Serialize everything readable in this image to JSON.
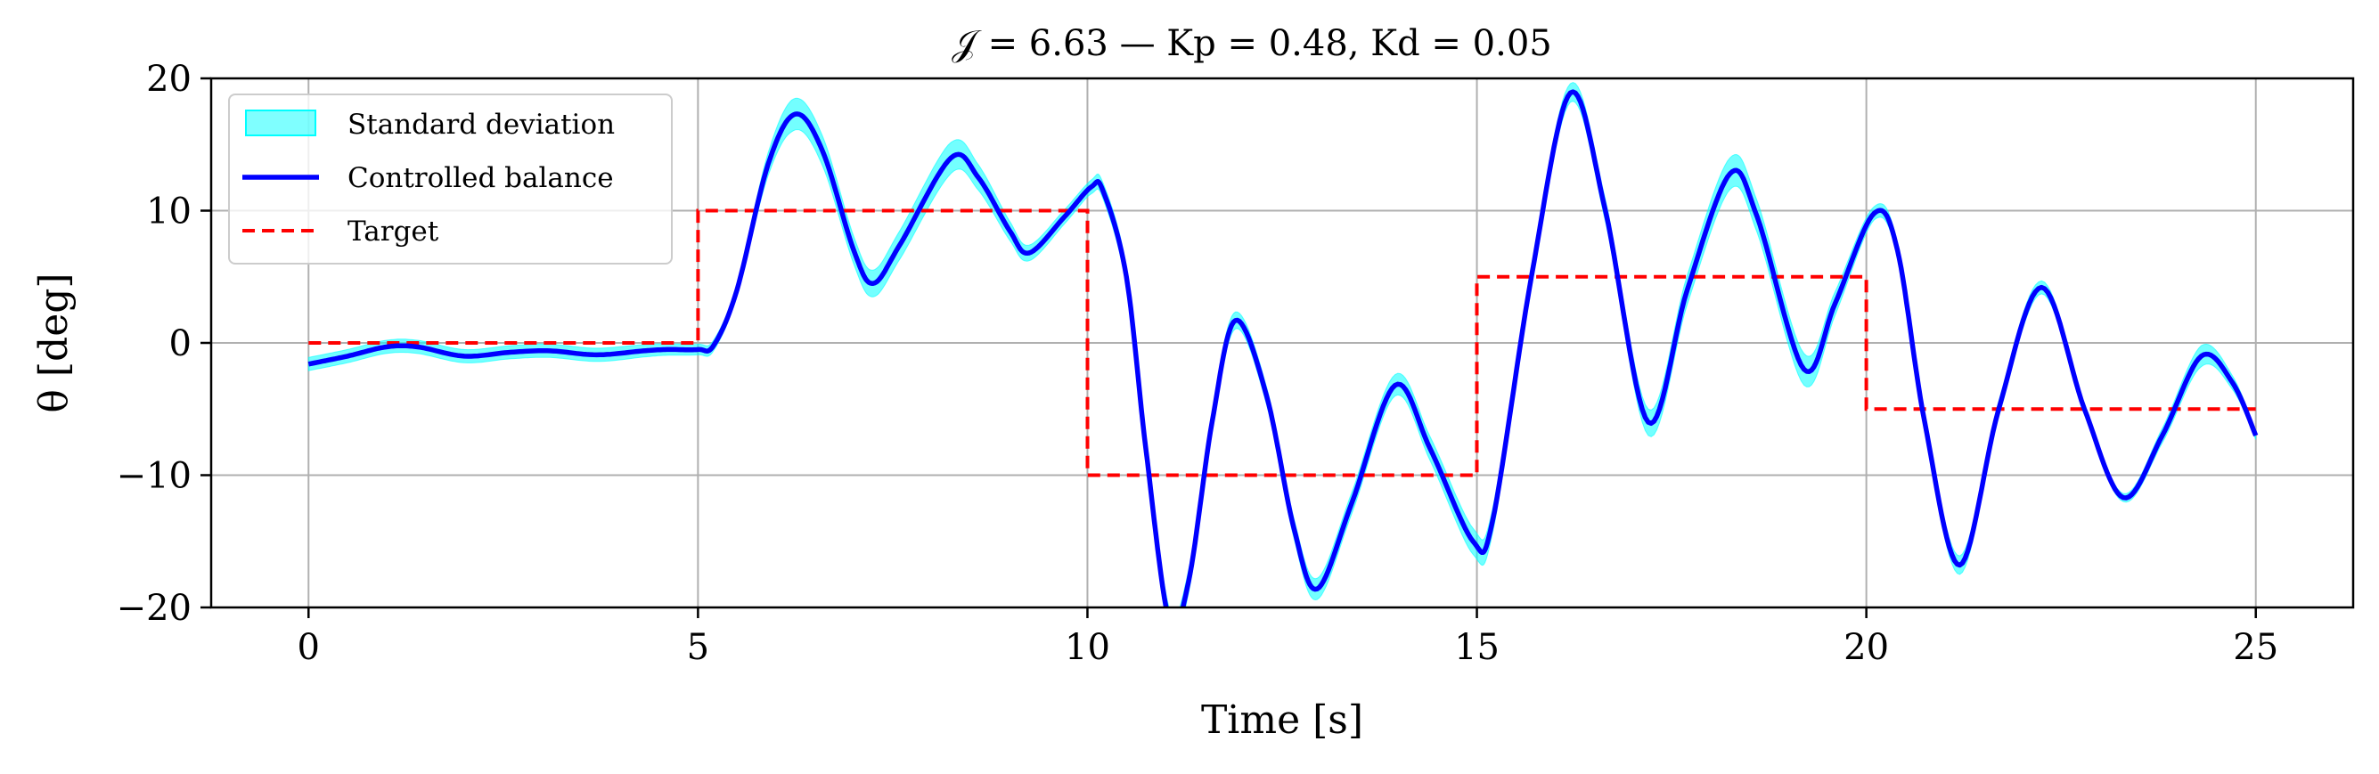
{
  "chart_data": {
    "type": "line",
    "title": "𝒥 = 6.63 — Kp = 0.48, Kd = 0.05",
    "xlabel": "Time [s]",
    "ylabel": "θ [deg]",
    "xlim": [
      -1.25,
      26.25
    ],
    "ylim": [
      -20,
      20
    ],
    "xticks": [
      0,
      5,
      10,
      15,
      20,
      25
    ],
    "yticks": [
      20,
      10,
      0,
      -10,
      -20
    ],
    "xtick_labels": [
      "0",
      "5",
      "10",
      "15",
      "20",
      "25"
    ],
    "ytick_labels": [
      "20",
      "10",
      "0",
      "−10",
      "−20"
    ],
    "grid": true,
    "legend_position": "top-left",
    "series": [
      {
        "name": "Standard deviation",
        "kind": "band",
        "color": "#00ffff",
        "halfwidth": [
          [
            0,
            0.5
          ],
          [
            2,
            0.5
          ],
          [
            4,
            0.5
          ],
          [
            4.9,
            0.4
          ],
          [
            5.5,
            0.4
          ],
          [
            6.2,
            1.2
          ],
          [
            7.2,
            1.0
          ],
          [
            8.2,
            1.2
          ],
          [
            9.2,
            0.6
          ],
          [
            10,
            0.5
          ],
          [
            11,
            1.0
          ],
          [
            12,
            0.6
          ],
          [
            12.9,
            0.8
          ],
          [
            13.9,
            0.8
          ],
          [
            14.9,
            1.0
          ],
          [
            16.2,
            0.7
          ],
          [
            17.2,
            1.0
          ],
          [
            18.2,
            1.2
          ],
          [
            19.2,
            1.2
          ],
          [
            20.1,
            0.5
          ],
          [
            21.2,
            0.7
          ],
          [
            22.2,
            0.5
          ],
          [
            23.3,
            0.3
          ],
          [
            24.3,
            0.8
          ],
          [
            25,
            0.3
          ]
        ]
      },
      {
        "name": "Controlled balance",
        "kind": "line",
        "color": "#0000ff",
        "points": [
          [
            0,
            -1.6
          ],
          [
            0.5,
            -1.0
          ],
          [
            1.0,
            -0.3
          ],
          [
            1.4,
            -0.3
          ],
          [
            2.0,
            -1.0
          ],
          [
            2.6,
            -0.7
          ],
          [
            3.1,
            -0.6
          ],
          [
            3.7,
            -0.9
          ],
          [
            4.3,
            -0.6
          ],
          [
            4.6,
            -0.5
          ],
          [
            5.0,
            -0.5
          ],
          [
            5.2,
            -0.2
          ],
          [
            5.5,
            4.0
          ],
          [
            5.9,
            13.5
          ],
          [
            6.25,
            17.3
          ],
          [
            6.6,
            14.5
          ],
          [
            7.0,
            7.0
          ],
          [
            7.25,
            4.5
          ],
          [
            7.6,
            7.5
          ],
          [
            8.25,
            14.0
          ],
          [
            8.6,
            12.5
          ],
          [
            9.0,
            8.5
          ],
          [
            9.25,
            6.8
          ],
          [
            9.7,
            9.5
          ],
          [
            10.05,
            11.8
          ],
          [
            10.2,
            11.5
          ],
          [
            10.5,
            5.0
          ],
          [
            10.75,
            -8.0
          ],
          [
            11.05,
            -21.0
          ],
          [
            11.3,
            -18.0
          ],
          [
            11.6,
            -6.0
          ],
          [
            11.9,
            1.7
          ],
          [
            12.3,
            -4.0
          ],
          [
            12.65,
            -14.0
          ],
          [
            12.95,
            -18.6
          ],
          [
            13.4,
            -12.0
          ],
          [
            13.95,
            -3.2
          ],
          [
            14.4,
            -8.0
          ],
          [
            14.95,
            -15.0
          ],
          [
            15.2,
            -13.5
          ],
          [
            15.7,
            5.0
          ],
          [
            16.2,
            18.9
          ],
          [
            16.65,
            10.0
          ],
          [
            17.2,
            -6.0
          ],
          [
            17.7,
            4.0
          ],
          [
            18.25,
            12.8
          ],
          [
            18.6,
            9.5
          ],
          [
            19.2,
            -2.0
          ],
          [
            19.6,
            3.0
          ],
          [
            20.1,
            9.8
          ],
          [
            20.4,
            7.0
          ],
          [
            20.75,
            -6.0
          ],
          [
            21.2,
            -16.8
          ],
          [
            21.7,
            -5.0
          ],
          [
            22.25,
            4.2
          ],
          [
            22.8,
            -5.0
          ],
          [
            23.3,
            -11.7
          ],
          [
            23.8,
            -7.0
          ],
          [
            24.3,
            -1.0
          ],
          [
            24.7,
            -3.0
          ],
          [
            25.0,
            -7.0
          ]
        ]
      },
      {
        "name": "Target",
        "kind": "step",
        "color": "#ff0000",
        "points": [
          [
            0,
            0
          ],
          [
            5,
            0
          ],
          [
            5,
            10
          ],
          [
            10,
            10
          ],
          [
            10,
            -10
          ],
          [
            15,
            -10
          ],
          [
            15,
            5
          ],
          [
            20,
            5
          ],
          [
            20,
            -5
          ],
          [
            25,
            -5
          ]
        ]
      }
    ]
  }
}
